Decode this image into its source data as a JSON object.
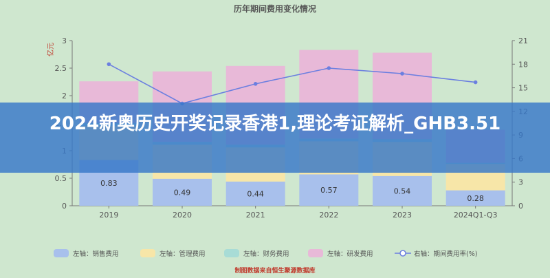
{
  "banner": {
    "title": "2024新奥历史开奖记录香港1,理论考证解析_GHB3.51"
  },
  "footer": {
    "source": "制图数据来自恒生聚源数据库"
  },
  "colors": {
    "background": "#cfe7cf",
    "sales": "#a8c0ec",
    "mgmt": "#f7e6a8",
    "finance": "#a8dcd6",
    "rd": "#e8b9d8",
    "line": "#6b7fe0",
    "banner": "#3778c8"
  },
  "chart_data": {
    "type": "bar",
    "title": "历年期间费用变化情况",
    "categories": [
      "2019",
      "2020",
      "2021",
      "2022",
      "2023",
      "2024Q1-Q3"
    ],
    "ylabel_left": "亿元",
    "ylim_left": [
      0,
      3
    ],
    "yticks_left": [
      "0",
      "0.5",
      "1",
      "1.5",
      "2",
      "2.5",
      "3"
    ],
    "ylim_right": [
      0,
      21
    ],
    "yticks_right": [
      "0",
      "3",
      "6",
      "9",
      "12",
      "15",
      "18",
      "21"
    ],
    "series": [
      {
        "name": "左轴：销售费用",
        "key": "sales",
        "stacked": true,
        "values": [
          0.83,
          0.49,
          0.44,
          0.57,
          0.54,
          0.28
        ],
        "labels": [
          "0.83",
          "0.49",
          "0.44",
          "0.57",
          "0.54",
          "0.28"
        ]
      },
      {
        "name": "左轴：管理费用",
        "key": "mgmt",
        "stacked": true,
        "values": [
          0.62,
          0.62,
          0.62,
          0.6,
          0.62,
          0.48
        ]
      },
      {
        "name": "左轴：财务费用",
        "key": "finance",
        "stacked": true,
        "values": [
          0.05,
          0.05,
          0.05,
          0.05,
          0.05,
          0.02
        ]
      },
      {
        "name": "左轴：研发费用",
        "key": "rd",
        "stacked": true,
        "values": [
          0.76,
          1.28,
          1.43,
          1.61,
          1.57,
          0.6
        ]
      },
      {
        "name": "右轴：期间费用率(%)",
        "key": "line",
        "axis": "right",
        "values": [
          18.0,
          13.0,
          15.5,
          17.5,
          16.8,
          15.7
        ]
      }
    ],
    "legend_position": "bottom",
    "grid": false
  }
}
